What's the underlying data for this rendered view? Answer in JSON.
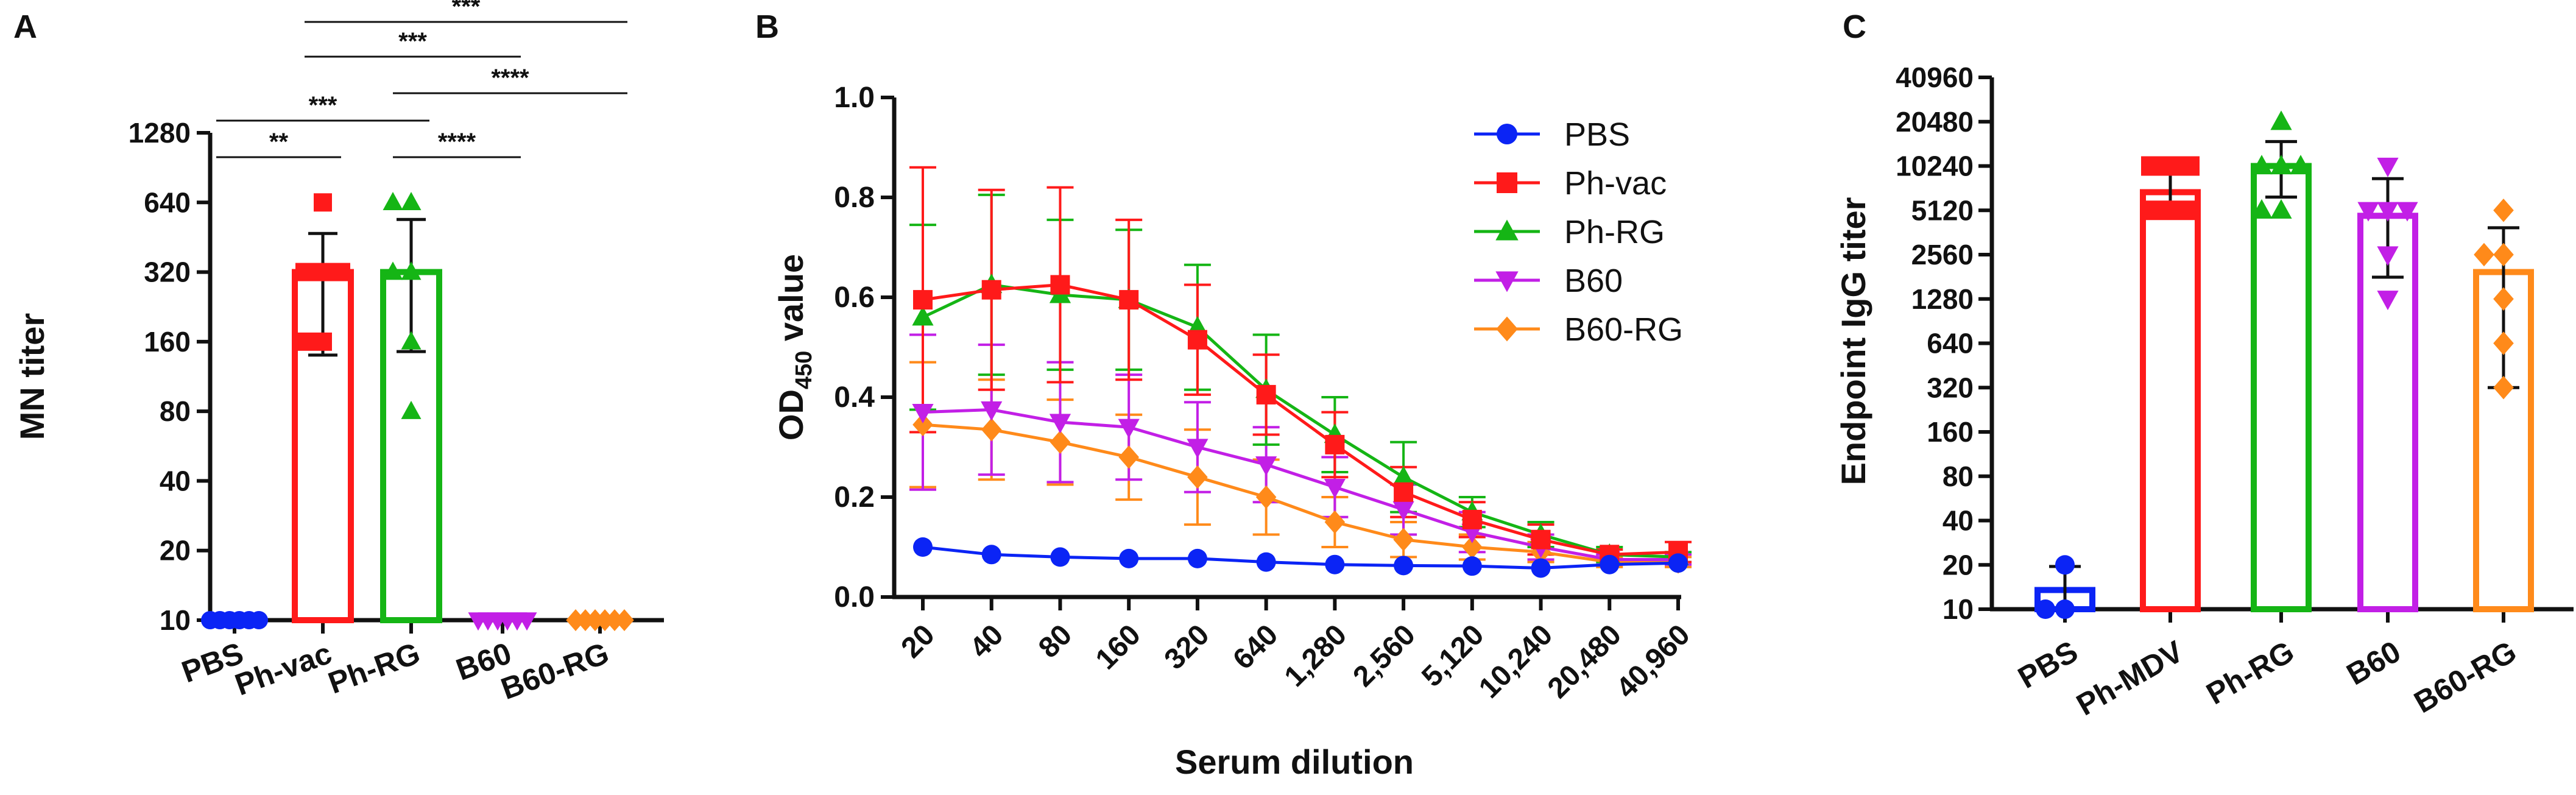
{
  "chart_data": [
    {
      "panel": "A",
      "type": "bar",
      "ylabel": "MN titer",
      "yscale": "log2",
      "ylim": [
        10,
        1280
      ],
      "yticks": [
        "10",
        "20",
        "40",
        "80",
        "160",
        "320",
        "640",
        "1280"
      ],
      "categories": [
        "PBS",
        "Ph-vac",
        "Ph-RG",
        "B60",
        "B60-RG"
      ],
      "colors": [
        "#0b24f5",
        "#ff1a1a",
        "#15b515",
        "#c21fe6",
        "#ff8a1a"
      ],
      "marker_shapes": [
        "circle",
        "square",
        "triangle",
        "down-triangle",
        "diamond"
      ],
      "means": [
        10,
        320,
        320,
        10,
        10
      ],
      "error_low": [
        10,
        140,
        145,
        10,
        10
      ],
      "error_high": [
        10,
        470,
        540,
        10,
        10
      ],
      "points": [
        [
          10,
          10,
          10,
          10,
          10,
          10
        ],
        [
          320,
          320,
          320,
          640,
          160,
          160
        ],
        [
          320,
          320,
          640,
          640,
          160,
          80
        ],
        [
          10,
          10,
          10,
          10,
          10,
          10
        ],
        [
          10,
          10,
          10,
          10,
          10,
          10
        ]
      ],
      "significance": [
        {
          "from": "PBS",
          "to": "Ph-vac",
          "label": "**"
        },
        {
          "from": "PBS",
          "to": "Ph-RG",
          "label": "***"
        },
        {
          "from": "Ph-RG",
          "to": "B60",
          "label": "****"
        },
        {
          "from": "Ph-RG",
          "to": "B60-RG",
          "label": "****"
        },
        {
          "from": "Ph-vac",
          "to": "B60",
          "label": "***"
        },
        {
          "from": "Ph-vac",
          "to": "B60-RG",
          "label": "***"
        }
      ]
    },
    {
      "panel": "B",
      "type": "line",
      "xlabel": "Serum dilution",
      "ylabel_main": "OD",
      "ylabel_sub": "450",
      "ylabel_suffix": " value",
      "ylim": [
        0,
        1.0
      ],
      "yticks": [
        "0.0",
        "0.2",
        "0.4",
        "0.6",
        "0.8",
        "1.0"
      ],
      "categories": [
        "20",
        "40",
        "80",
        "160",
        "320",
        "640",
        "1,280",
        "2,560",
        "5,120",
        "10,240",
        "20,480",
        "40,960"
      ],
      "legend_position": "top-right",
      "series": [
        {
          "name": "PBS",
          "color": "#0b24f5",
          "marker": "circle",
          "values": [
            0.1,
            0.085,
            0.08,
            0.077,
            0.077,
            0.07,
            0.065,
            0.063,
            0.062,
            0.058,
            0.065,
            0.068
          ],
          "err": [
            0,
            0,
            0,
            0,
            0,
            0,
            0,
            0,
            0,
            0,
            0,
            0
          ]
        },
        {
          "name": "Ph-vac",
          "color": "#ff1a1a",
          "marker": "square",
          "values": [
            0.595,
            0.615,
            0.625,
            0.595,
            0.515,
            0.405,
            0.305,
            0.21,
            0.155,
            0.115,
            0.085,
            0.09
          ],
          "err": [
            0.265,
            0.2,
            0.195,
            0.16,
            0.11,
            0.08,
            0.065,
            0.05,
            0.035,
            0.03,
            0.01,
            0.02
          ]
        },
        {
          "name": "Ph-RG",
          "color": "#15b515",
          "marker": "triangle",
          "values": [
            0.56,
            0.625,
            0.605,
            0.595,
            0.54,
            0.415,
            0.325,
            0.24,
            0.17,
            0.125,
            0.085,
            0.08
          ],
          "err": [
            0.185,
            0.18,
            0.15,
            0.14,
            0.125,
            0.11,
            0.075,
            0.07,
            0.03,
            0.025,
            0.015,
            0.01
          ]
        },
        {
          "name": "B60",
          "color": "#c21fe6",
          "marker": "down-triangle",
          "values": [
            0.37,
            0.375,
            0.35,
            0.34,
            0.3,
            0.265,
            0.22,
            0.175,
            0.13,
            0.1,
            0.075,
            0.075
          ],
          "err": [
            0.155,
            0.13,
            0.12,
            0.105,
            0.09,
            0.075,
            0.06,
            0.05,
            0.04,
            0.025,
            0.01,
            0.01
          ]
        },
        {
          "name": "B60-RG",
          "color": "#ff8a1a",
          "marker": "diamond",
          "values": [
            0.345,
            0.335,
            0.31,
            0.28,
            0.24,
            0.2,
            0.15,
            0.115,
            0.1,
            0.09,
            0.07,
            0.07
          ],
          "err": [
            0.125,
            0.1,
            0.085,
            0.085,
            0.095,
            0.075,
            0.05,
            0.035,
            0.025,
            0.02,
            0.01,
            0.01
          ]
        }
      ]
    },
    {
      "panel": "C",
      "type": "bar",
      "ylabel": "Endpoint IgG titer",
      "yscale": "log2",
      "ylim": [
        10,
        40960
      ],
      "yticks": [
        "10",
        "20",
        "40",
        "80",
        "160",
        "320",
        "640",
        "1280",
        "2560",
        "5120",
        "10240",
        "20480",
        "40960"
      ],
      "categories": [
        "PBS",
        "Ph-MDV",
        "Ph-RG",
        "B60",
        "B60-RG"
      ],
      "colors": [
        "#0b24f5",
        "#ff1a1a",
        "#15b515",
        "#c21fe6",
        "#ff8a1a"
      ],
      "marker_shapes": [
        "circle",
        "square",
        "triangle",
        "down-triangle",
        "diamond"
      ],
      "means": [
        13.5,
        6800,
        10240,
        4700,
        1950
      ],
      "error_low": [
        10,
        4700,
        6300,
        1800,
        320
      ],
      "error_high": [
        19.5,
        9800,
        15000,
        8400,
        3900
      ],
      "points": [
        [
          10,
          10,
          20
        ],
        [
          10240,
          10240,
          5120,
          5120,
          5120,
          10240
        ],
        [
          10240,
          20480,
          5120,
          10240,
          10240,
          5120
        ],
        [
          10240,
          5120,
          5120,
          2560,
          1280,
          5120
        ],
        [
          5120,
          2560,
          640,
          1280,
          320,
          2560
        ]
      ]
    }
  ]
}
